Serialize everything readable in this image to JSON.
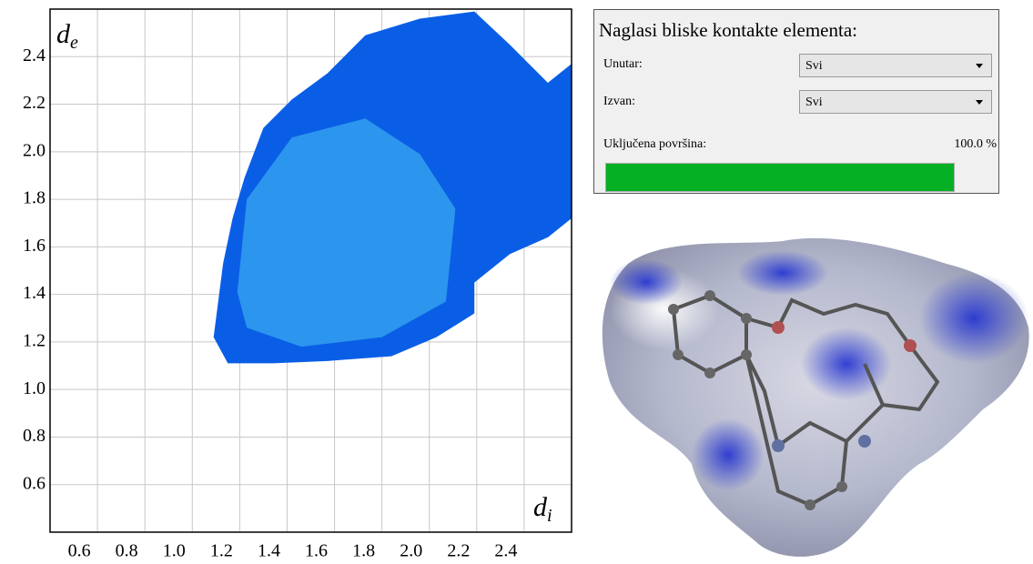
{
  "chart_data": {
    "type": "fingerprint",
    "x_label": {
      "symbol": "d",
      "subscript": "i"
    },
    "y_label": {
      "symbol": "d",
      "subscript": "e"
    },
    "xlim": [
      0.4,
      2.6
    ],
    "ylim": [
      0.4,
      2.6
    ],
    "xticks": [
      0.6,
      0.8,
      {
        "value": 1,
        "label": "1.0"
      },
      1.2,
      1.4,
      1.6,
      1.8,
      {
        "value": 2,
        "label": "2.0"
      },
      2.2,
      2.4
    ],
    "yticks": [
      0.6,
      0.8,
      {
        "value": 1,
        "label": "1.0"
      },
      1.2,
      1.4,
      1.6,
      1.8,
      {
        "value": 2,
        "label": "2.0"
      },
      2.2,
      2.4
    ],
    "grid": true,
    "series": [
      {
        "color": "#0a5ee6",
        "x": [
          1.09,
          1.13,
          1.17,
          1.22,
          1.3,
          1.42,
          1.57,
          1.73,
          1.96,
          2.19,
          2.34,
          2.5,
          2.6,
          2.6,
          2.5,
          2.34,
          2.19,
          2.19,
          2.03,
          1.84,
          1.57,
          1.34,
          1.15
        ],
        "values": [
          1.22,
          1.53,
          1.72,
          1.89,
          2.1,
          2.22,
          2.33,
          2.49,
          2.56,
          2.59,
          2.45,
          2.29,
          2.37,
          1.72,
          1.64,
          1.57,
          1.45,
          1.32,
          1.22,
          1.14,
          1.12,
          1.11,
          1.11
        ]
      },
      {
        "color": "#38a8f0",
        "x": [
          1.19,
          1.23,
          1.42,
          1.73,
          1.96,
          2.11,
          2.07,
          1.8,
          1.46,
          1.23
        ],
        "values": [
          1.41,
          1.8,
          2.06,
          2.14,
          1.99,
          1.76,
          1.37,
          1.22,
          1.18,
          1.26
        ]
      }
    ]
  },
  "panel": {
    "title": "Naglasi bliske kontakte elementa:",
    "inside": {
      "label": "Unutar:",
      "selected": "Svi"
    },
    "outside": {
      "label": "Izvan:",
      "selected": "Svi"
    },
    "surface": {
      "label": "Uključena površina:",
      "percent": {
        "value": 100,
        "label": "100.0 %"
      }
    }
  }
}
